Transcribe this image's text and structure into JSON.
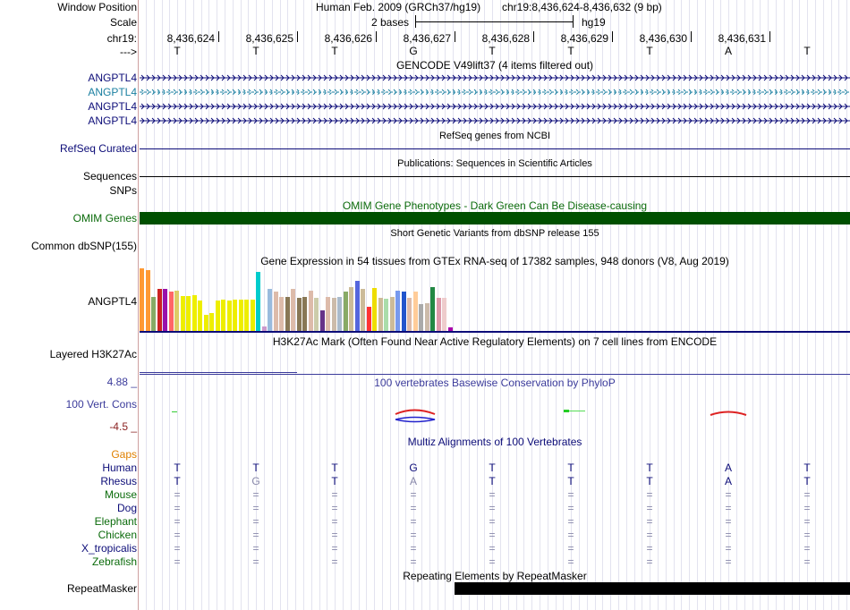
{
  "header": {
    "window_position_label": "Window Position",
    "assembly_text": "Human Feb. 2009 (GRCh37/hg19)",
    "position_text": "chr19:8,436,624-8,436,632 (9 bp)",
    "scale_label": "Scale",
    "scale_value": "2 bases",
    "scale_db": "hg19",
    "chrom_label": "chr19:",
    "strand_label": "--->",
    "coordinates": [
      "8,436,624",
      "8,436,625",
      "8,436,626",
      "8,436,627",
      "8,436,628",
      "8,436,629",
      "8,436,630",
      "8,436,631"
    ],
    "bases": [
      "T",
      "T",
      "T",
      "G",
      "T",
      "T",
      "T",
      "A",
      "T"
    ]
  },
  "gencode": {
    "title": "GENCODE V49lift37 (4 items filtered out)",
    "items": [
      "ANGPTL4",
      "ANGPTL4",
      "ANGPTL4",
      "ANGPTL4"
    ],
    "colors": [
      "#0c0c78",
      "#1a7fa0",
      "#0c0c78",
      "#0c0c78"
    ]
  },
  "refseq": {
    "title": "RefSeq genes from NCBI",
    "label": "RefSeq Curated"
  },
  "publications": {
    "title": "Publications: Sequences in Scientific Articles",
    "label": "Sequences"
  },
  "snps": {
    "label": "SNPs"
  },
  "omim": {
    "title": "OMIM Gene Phenotypes - Dark Green Can Be Disease-causing",
    "label": "OMIM Genes",
    "color": "#005000"
  },
  "dbsnp": {
    "title": "Short Genetic Variants from dbSNP release 155",
    "label": "Common dbSNP(155)"
  },
  "gtex": {
    "title": "Gene Expression in 54 tissues from GTEx RNA-seq of 17382 samples, 948 donors (V8, Aug 2019)",
    "label": "ANGPTL4",
    "values": [
      70,
      68,
      38,
      47,
      47,
      44,
      45,
      39,
      39,
      40,
      34,
      18,
      20,
      34,
      35,
      34,
      35,
      35,
      35,
      35,
      66,
      5,
      47,
      44,
      38,
      38,
      47,
      37,
      38,
      45,
      37,
      23,
      38,
      37,
      38,
      44,
      49,
      56,
      47,
      27,
      48,
      37,
      36,
      38,
      45,
      44,
      37,
      44,
      30,
      31,
      49,
      37,
      37,
      4
    ],
    "colors": [
      "#ff9933",
      "#ff9933",
      "#88aa66",
      "#cc2222",
      "#9911aa",
      "#ff6666",
      "#ddcc66",
      "#eeee00",
      "#eeee00",
      "#eeee00",
      "#eeee00",
      "#eeee00",
      "#eeee00",
      "#eeee00",
      "#eeee00",
      "#eeee00",
      "#eeee00",
      "#eeee00",
      "#eeee00",
      "#eeee00",
      "#00cccc",
      "#cc99cc",
      "#99bbdd",
      "#ddbbaa",
      "#ddbbaa",
      "#887755",
      "#ddbbaa",
      "#887755",
      "#887755",
      "#ddbbaa",
      "#ccccaa",
      "#663388",
      "#ddbbaa",
      "#ccbbaa",
      "#aabbcc",
      "#88aa66",
      "#ccbb99",
      "#5566dd",
      "#ccbb99",
      "#ff3333",
      "#eedd00",
      "#ccbb99",
      "#aaddaa",
      "#ccbb99",
      "#7799ee",
      "#2255cc",
      "#ddbbaa",
      "#ffcc99",
      "#aaaaaa",
      "#ccbbaa",
      "#228844",
      "#dd99aa",
      "#eecccc",
      "#aa00aa"
    ]
  },
  "h3k27ac": {
    "title": "H3K27Ac Mark (Often Found Near Active Regulatory Elements) on 7 cell lines from ENCODE",
    "label": "Layered H3K27Ac"
  },
  "phylop": {
    "title": "100 vertebrates Basewise Conservation by PhyloP",
    "label": "100 Vert. Cons",
    "max": "4.88 _",
    "min": "-4.5 _"
  },
  "multiz": {
    "title": "Multiz Alignments of 100 Vertebrates",
    "gaps_label": "Gaps",
    "species": [
      {
        "name": "Human",
        "color": "#0c0c78",
        "bases": [
          "T",
          "T",
          "T",
          "G",
          "T",
          "T",
          "T",
          "A",
          "T"
        ]
      },
      {
        "name": "Rhesus",
        "color": "#0c0c78",
        "bases": [
          "T",
          "G",
          "T",
          "A",
          "T",
          "T",
          "T",
          "A",
          "T"
        ]
      },
      {
        "name": "Mouse",
        "color": "#0b6b0b",
        "bases": [
          "=",
          "=",
          "=",
          "=",
          "=",
          "=",
          "=",
          "=",
          "="
        ]
      },
      {
        "name": "Dog",
        "color": "#0c0c78",
        "bases": [
          "=",
          "=",
          "=",
          "=",
          "=",
          "=",
          "=",
          "=",
          "="
        ]
      },
      {
        "name": "Elephant",
        "color": "#0b6b0b",
        "bases": [
          "=",
          "=",
          "=",
          "=",
          "=",
          "=",
          "=",
          "=",
          "="
        ]
      },
      {
        "name": "Chicken",
        "color": "#0b6b0b",
        "bases": [
          "=",
          "=",
          "=",
          "=",
          "=",
          "=",
          "=",
          "=",
          "="
        ]
      },
      {
        "name": "X_tropicalis",
        "color": "#0c0c78",
        "bases": [
          "=",
          "=",
          "=",
          "=",
          "=",
          "=",
          "=",
          "=",
          "="
        ]
      },
      {
        "name": "Zebrafish",
        "color": "#0b6b0b",
        "bases": [
          "=",
          "=",
          "=",
          "=",
          "=",
          "=",
          "=",
          "=",
          "="
        ]
      }
    ]
  },
  "repeatmasker": {
    "title": "Repeating Elements by RepeatMasker",
    "label": "RepeatMasker"
  },
  "colors": {
    "label_blue": "#0c0c78",
    "gaps_orange": "#e08000",
    "dim_gray": "#8888aa",
    "phylop_max": "#3b3b9b",
    "phylop_min": "#8b2222"
  }
}
